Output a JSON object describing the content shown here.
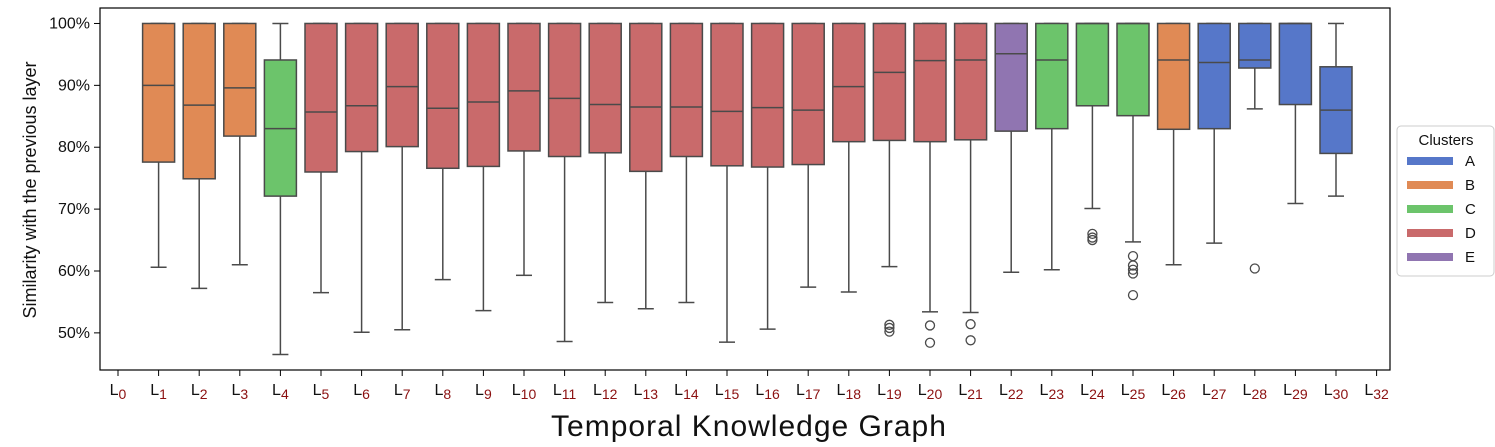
{
  "chart_data": {
    "type": "box",
    "xlabel": "Temporal Knowledge Graph",
    "ylabel": "Similarity with the previous layer",
    "ylim": [
      44,
      102.5
    ],
    "yticks": [
      50,
      60,
      70,
      80,
      90,
      100
    ],
    "ytick_labels": [
      "50%",
      "60%",
      "70%",
      "80%",
      "90%",
      "100%"
    ],
    "categories": [
      {
        "base": "L",
        "sub": "0"
      },
      {
        "base": "L",
        "sub": "1"
      },
      {
        "base": "L",
        "sub": "2"
      },
      {
        "base": "L",
        "sub": "3"
      },
      {
        "base": "L",
        "sub": "4"
      },
      {
        "base": "L",
        "sub": "5"
      },
      {
        "base": "L",
        "sub": "6"
      },
      {
        "base": "L",
        "sub": "7"
      },
      {
        "base": "L",
        "sub": "8"
      },
      {
        "base": "L",
        "sub": "9"
      },
      {
        "base": "L",
        "sub": "10"
      },
      {
        "base": "L",
        "sub": "11"
      },
      {
        "base": "L",
        "sub": "12"
      },
      {
        "base": "L",
        "sub": "13"
      },
      {
        "base": "L",
        "sub": "14"
      },
      {
        "base": "L",
        "sub": "15"
      },
      {
        "base": "L",
        "sub": "16"
      },
      {
        "base": "L",
        "sub": "17"
      },
      {
        "base": "L",
        "sub": "18"
      },
      {
        "base": "L",
        "sub": "19"
      },
      {
        "base": "L",
        "sub": "20"
      },
      {
        "base": "L",
        "sub": "21"
      },
      {
        "base": "L",
        "sub": "22"
      },
      {
        "base": "L",
        "sub": "23"
      },
      {
        "base": "L",
        "sub": "24"
      },
      {
        "base": "L",
        "sub": "25"
      },
      {
        "base": "L",
        "sub": "26"
      },
      {
        "base": "L",
        "sub": "27"
      },
      {
        "base": "L",
        "sub": "28"
      },
      {
        "base": "L",
        "sub": "29"
      },
      {
        "base": "L",
        "sub": "30"
      },
      {
        "base": "L",
        "sub": "32"
      }
    ],
    "boxes": [
      {
        "layer": "L1",
        "cluster": "B",
        "min": 60.6,
        "q1": 77.6,
        "median": 90.0,
        "q3": 100,
        "max": 100,
        "outliers": []
      },
      {
        "layer": "L2",
        "cluster": "B",
        "min": 57.2,
        "q1": 74.9,
        "median": 86.8,
        "q3": 100,
        "max": 100,
        "outliers": []
      },
      {
        "layer": "L3",
        "cluster": "B",
        "min": 61.0,
        "q1": 81.8,
        "median": 89.6,
        "q3": 100,
        "max": 100,
        "outliers": []
      },
      {
        "layer": "L4",
        "cluster": "C",
        "min": 46.5,
        "q1": 72.1,
        "median": 83.0,
        "q3": 94.1,
        "max": 100,
        "outliers": []
      },
      {
        "layer": "L5",
        "cluster": "D",
        "min": 56.5,
        "q1": 76.0,
        "median": 85.7,
        "q3": 100,
        "max": 100,
        "outliers": []
      },
      {
        "layer": "L6",
        "cluster": "D",
        "min": 50.1,
        "q1": 79.3,
        "median": 86.7,
        "q3": 100,
        "max": 100,
        "outliers": []
      },
      {
        "layer": "L7",
        "cluster": "D",
        "min": 50.5,
        "q1": 80.1,
        "median": 89.8,
        "q3": 100,
        "max": 100,
        "outliers": []
      },
      {
        "layer": "L8",
        "cluster": "D",
        "min": 58.6,
        "q1": 76.6,
        "median": 86.3,
        "q3": 100,
        "max": 100,
        "outliers": []
      },
      {
        "layer": "L9",
        "cluster": "D",
        "min": 53.6,
        "q1": 76.9,
        "median": 87.3,
        "q3": 100,
        "max": 100,
        "outliers": []
      },
      {
        "layer": "L10",
        "cluster": "D",
        "min": 59.3,
        "q1": 79.4,
        "median": 89.1,
        "q3": 100,
        "max": 100,
        "outliers": []
      },
      {
        "layer": "L11",
        "cluster": "D",
        "min": 48.6,
        "q1": 78.5,
        "median": 87.9,
        "q3": 100,
        "max": 100,
        "outliers": []
      },
      {
        "layer": "L12",
        "cluster": "D",
        "min": 54.9,
        "q1": 79.1,
        "median": 86.9,
        "q3": 100,
        "max": 100,
        "outliers": []
      },
      {
        "layer": "L13",
        "cluster": "D",
        "min": 53.9,
        "q1": 76.1,
        "median": 86.5,
        "q3": 100,
        "max": 100,
        "outliers": []
      },
      {
        "layer": "L14",
        "cluster": "D",
        "min": 54.9,
        "q1": 78.5,
        "median": 86.5,
        "q3": 100,
        "max": 100,
        "outliers": []
      },
      {
        "layer": "L15",
        "cluster": "D",
        "min": 48.5,
        "q1": 77.0,
        "median": 85.8,
        "q3": 100,
        "max": 100,
        "outliers": []
      },
      {
        "layer": "L16",
        "cluster": "D",
        "min": 50.6,
        "q1": 76.8,
        "median": 86.4,
        "q3": 100,
        "max": 100,
        "outliers": []
      },
      {
        "layer": "L17",
        "cluster": "D",
        "min": 57.4,
        "q1": 77.2,
        "median": 86.0,
        "q3": 100,
        "max": 100,
        "outliers": []
      },
      {
        "layer": "L18",
        "cluster": "D",
        "min": 56.6,
        "q1": 80.9,
        "median": 89.8,
        "q3": 100,
        "max": 100,
        "outliers": []
      },
      {
        "layer": "L19",
        "cluster": "D",
        "min": 60.7,
        "q1": 81.1,
        "median": 92.1,
        "q3": 100,
        "max": 100,
        "outliers": [
          51.3,
          50.8,
          50.2
        ]
      },
      {
        "layer": "L20",
        "cluster": "D",
        "min": 53.4,
        "q1": 80.9,
        "median": 94.0,
        "q3": 100,
        "max": 100,
        "outliers": [
          51.2,
          48.4
        ]
      },
      {
        "layer": "L21",
        "cluster": "D",
        "min": 53.3,
        "q1": 81.2,
        "median": 94.1,
        "q3": 100,
        "max": 100,
        "outliers": [
          51.4,
          48.8
        ]
      },
      {
        "layer": "L22",
        "cluster": "E",
        "min": 59.8,
        "q1": 82.6,
        "median": 95.1,
        "q3": 100,
        "max": 100,
        "outliers": []
      },
      {
        "layer": "L23",
        "cluster": "C",
        "min": 60.2,
        "q1": 83.0,
        "median": 94.1,
        "q3": 100,
        "max": 100,
        "outliers": []
      },
      {
        "layer": "L24",
        "cluster": "C",
        "min": 70.1,
        "q1": 86.7,
        "median": 100,
        "q3": 100,
        "max": 100,
        "outliers": [
          66.0,
          65.4,
          65.0
        ]
      },
      {
        "layer": "L25",
        "cluster": "C",
        "min": 64.7,
        "q1": 85.1,
        "median": 100,
        "q3": 100,
        "max": 100,
        "outliers": [
          62.4,
          60.9,
          60.2,
          59.6,
          56.1
        ]
      },
      {
        "layer": "L26",
        "cluster": "B",
        "min": 61.0,
        "q1": 82.9,
        "median": 94.1,
        "q3": 100,
        "max": 100,
        "outliers": []
      },
      {
        "layer": "L27",
        "cluster": "A",
        "min": 64.5,
        "q1": 83.0,
        "median": 93.7,
        "q3": 100,
        "max": 100,
        "outliers": []
      },
      {
        "layer": "L28",
        "cluster": "A",
        "min": 86.2,
        "q1": 92.8,
        "median": 94.1,
        "q3": 100,
        "max": 100,
        "outliers": [
          60.4
        ]
      },
      {
        "layer": "L29",
        "cluster": "A",
        "min": 70.9,
        "q1": 86.9,
        "median": 100,
        "q3": 100,
        "max": 100,
        "outliers": []
      },
      {
        "layer": "L30",
        "cluster": "A",
        "min": 72.1,
        "q1": 79.0,
        "median": 86.0,
        "q3": 93.0,
        "max": 100,
        "outliers": []
      }
    ],
    "legend": {
      "title": "Clusters",
      "position": "right",
      "entries": [
        {
          "label": "A",
          "color": "#5677c9"
        },
        {
          "label": "B",
          "color": "#e08a55"
        },
        {
          "label": "C",
          "color": "#6cc46b"
        },
        {
          "label": "D",
          "color": "#c96a6b"
        },
        {
          "label": "E",
          "color": "#9075b1"
        }
      ]
    },
    "colors": {
      "A": "#5677c9",
      "B": "#e08a55",
      "C": "#6cc46b",
      "D": "#c96a6b",
      "E": "#9075b1",
      "subscript": "#8b1010",
      "box_edge": "#4a4a4a"
    },
    "grid": false
  }
}
